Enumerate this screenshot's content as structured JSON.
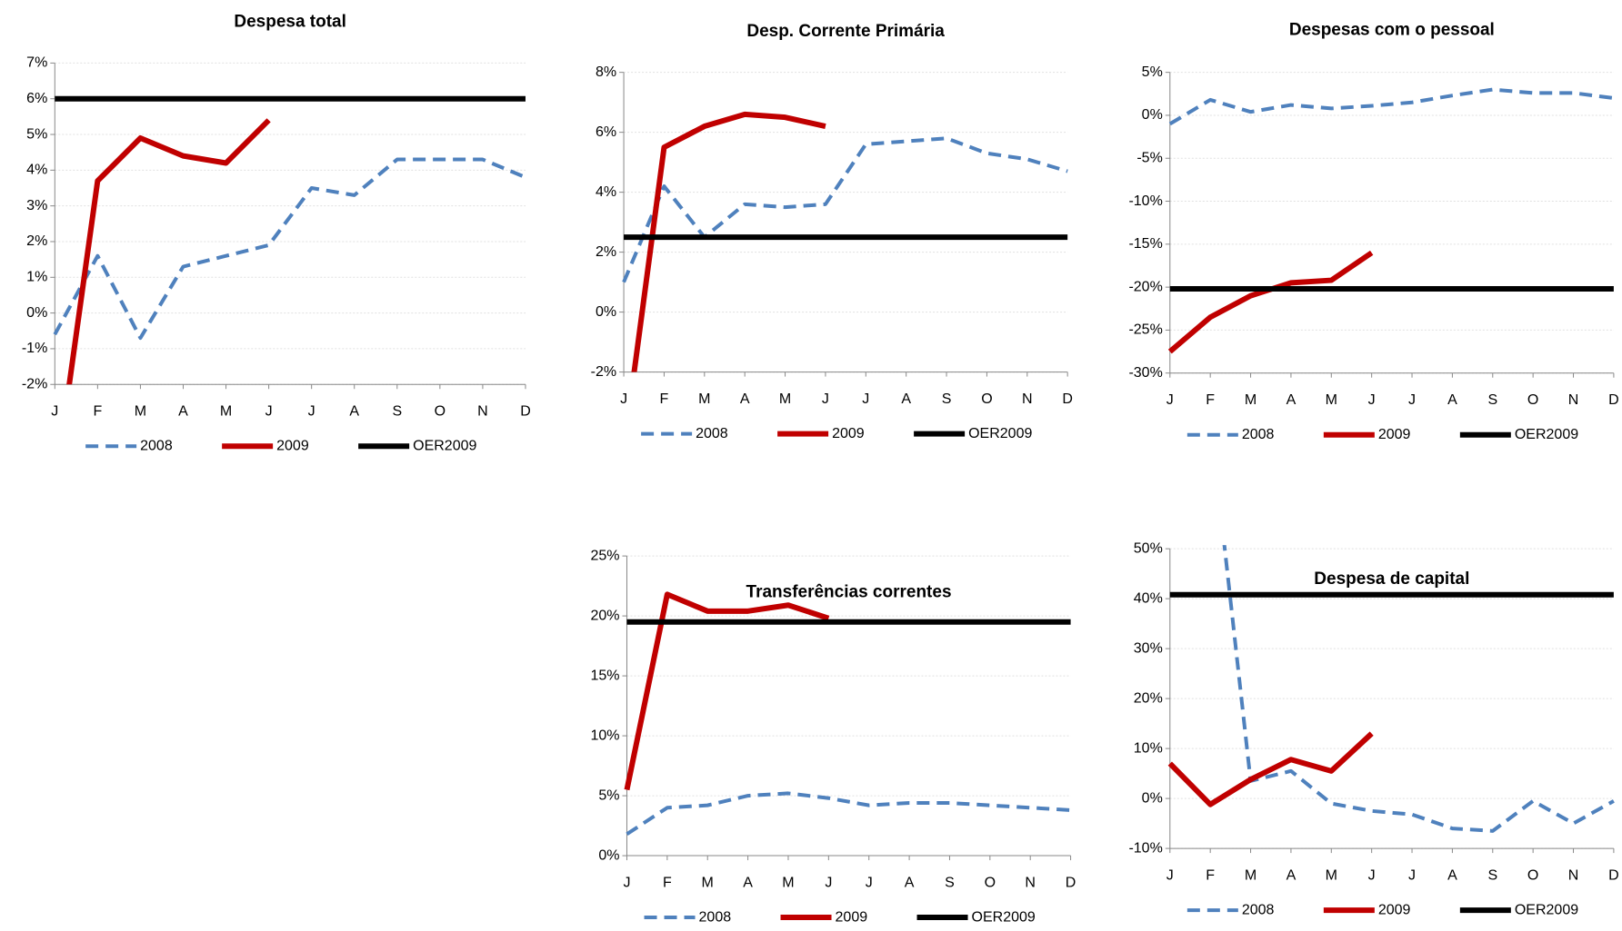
{
  "chart_data": [
    {
      "type": "line",
      "title": "Despesa total",
      "categories": [
        "J",
        "F",
        "M",
        "A",
        "M",
        "J",
        "J",
        "A",
        "S",
        "O",
        "N",
        "D"
      ],
      "ylim": [
        -2,
        7
      ],
      "yticks": [
        {
          "value": -2,
          "label": "-2%"
        },
        {
          "value": -1,
          "label": "-1%"
        },
        {
          "value": 0,
          "label": "0%"
        },
        {
          "value": 1,
          "label": "1%"
        },
        {
          "value": 2,
          "label": "2%"
        },
        {
          "value": 3,
          "label": "3%"
        },
        {
          "value": 4,
          "label": "4%"
        },
        {
          "value": 5,
          "label": "5%"
        },
        {
          "value": 6,
          "label": "6%"
        },
        {
          "value": 7,
          "label": "7%"
        }
      ],
      "grid": true,
      "series": [
        {
          "name": "2008",
          "color": "#4f81bd",
          "style": "dashed",
          "values": [
            -0.6,
            1.6,
            -0.7,
            1.3,
            1.6,
            1.9,
            3.5,
            3.3,
            4.3,
            4.3,
            4.3,
            3.8
          ]
        },
        {
          "name": "2009",
          "color": "#c00000",
          "style": "solid",
          "values": [
            -4.9,
            3.7,
            4.9,
            4.4,
            4.2,
            5.4,
            null,
            null,
            null,
            null,
            null,
            null
          ]
        },
        {
          "name": "OER2009",
          "color": "#000000",
          "style": "solid",
          "values": [
            6,
            6,
            6,
            6,
            6,
            6,
            6,
            6,
            6,
            6,
            6,
            6
          ]
        }
      ]
    },
    {
      "type": "line",
      "title": "Desp. Corrente Primária",
      "categories": [
        "J",
        "F",
        "M",
        "A",
        "M",
        "J",
        "J",
        "A",
        "S",
        "O",
        "N",
        "D"
      ],
      "ylim": [
        -2,
        8
      ],
      "yticks": [
        {
          "value": -2,
          "label": "-2%"
        },
        {
          "value": 0,
          "label": "0%"
        },
        {
          "value": 2,
          "label": "2%"
        },
        {
          "value": 4,
          "label": "4%"
        },
        {
          "value": 6,
          "label": "6%"
        },
        {
          "value": 8,
          "label": "8%"
        }
      ],
      "grid": true,
      "series": [
        {
          "name": "2008",
          "color": "#4f81bd",
          "style": "dashed",
          "values": [
            1.0,
            4.2,
            2.5,
            3.6,
            3.5,
            3.6,
            5.6,
            5.7,
            5.8,
            5.3,
            5.1,
            4.7
          ]
        },
        {
          "name": "2009",
          "color": "#c00000",
          "style": "solid",
          "values": [
            -4.6,
            5.5,
            6.2,
            6.6,
            6.5,
            6.2,
            null,
            null,
            null,
            null,
            null,
            null
          ]
        },
        {
          "name": "OER2009",
          "color": "#000000",
          "style": "solid",
          "values": [
            2.5,
            2.5,
            2.5,
            2.5,
            2.5,
            2.5,
            2.5,
            2.5,
            2.5,
            2.5,
            2.5,
            2.5
          ]
        }
      ]
    },
    {
      "type": "line",
      "title": "Despesas com o pessoal",
      "categories": [
        "J",
        "F",
        "M",
        "A",
        "M",
        "J",
        "J",
        "A",
        "S",
        "O",
        "N",
        "D"
      ],
      "ylim": [
        -30,
        5
      ],
      "yticks": [
        {
          "value": -30,
          "label": "-30%"
        },
        {
          "value": -25,
          "label": "-25%"
        },
        {
          "value": -20,
          "label": "-20%"
        },
        {
          "value": -15,
          "label": "-15%"
        },
        {
          "value": -10,
          "label": "-10%"
        },
        {
          "value": -5,
          "label": "-5%"
        },
        {
          "value": 0,
          "label": "0%"
        },
        {
          "value": 5,
          "label": "5%"
        }
      ],
      "grid": true,
      "series": [
        {
          "name": "2008",
          "color": "#4f81bd",
          "style": "dashed",
          "values": [
            -1,
            1.8,
            0.4,
            1.2,
            0.8,
            1.1,
            1.5,
            2.3,
            3.0,
            2.6,
            2.6,
            2.0
          ]
        },
        {
          "name": "2009",
          "color": "#c00000",
          "style": "solid",
          "values": [
            -27.5,
            -23.5,
            -21,
            -19.5,
            -19.2,
            -16,
            null,
            null,
            null,
            null,
            null,
            null
          ]
        },
        {
          "name": "OER2009",
          "color": "#000000",
          "style": "solid",
          "values": [
            -20.2,
            -20.2,
            -20.2,
            -20.2,
            -20.2,
            -20.2,
            -20.2,
            -20.2,
            -20.2,
            -20.2,
            -20.2,
            -20.2
          ]
        }
      ]
    },
    {
      "type": "line",
      "title": "Transferências correntes",
      "categories": [
        "J",
        "F",
        "M",
        "A",
        "M",
        "J",
        "J",
        "A",
        "S",
        "O",
        "N",
        "D"
      ],
      "ylim": [
        0,
        25
      ],
      "yticks": [
        {
          "value": 0,
          "label": "0%"
        },
        {
          "value": 5,
          "label": "5%"
        },
        {
          "value": 10,
          "label": "10%"
        },
        {
          "value": 15,
          "label": "15%"
        },
        {
          "value": 20,
          "label": "20%"
        },
        {
          "value": 25,
          "label": "25%"
        }
      ],
      "grid": true,
      "series": [
        {
          "name": "2008",
          "color": "#4f81bd",
          "style": "dashed",
          "values": [
            1.8,
            4.0,
            4.2,
            5.0,
            5.2,
            4.8,
            4.2,
            4.4,
            4.4,
            4.2,
            4.0,
            3.8
          ]
        },
        {
          "name": "2009",
          "color": "#c00000",
          "style": "solid",
          "values": [
            5.5,
            21.8,
            20.4,
            20.4,
            20.9,
            19.8,
            null,
            null,
            null,
            null,
            null,
            null
          ]
        },
        {
          "name": "OER2009",
          "color": "#000000",
          "style": "solid",
          "values": [
            19.5,
            19.5,
            19.5,
            19.5,
            19.5,
            19.5,
            19.5,
            19.5,
            19.5,
            19.5,
            19.5,
            19.5
          ]
        }
      ]
    },
    {
      "type": "line",
      "title": "Despesa de capital",
      "categories": [
        "J",
        "F",
        "M",
        "A",
        "M",
        "J",
        "J",
        "A",
        "S",
        "O",
        "N",
        "D"
      ],
      "ylim": [
        -10,
        50
      ],
      "yticks": [
        {
          "value": -10,
          "label": "-10%"
        },
        {
          "value": 0,
          "label": "0%"
        },
        {
          "value": 10,
          "label": "10%"
        },
        {
          "value": 20,
          "label": "20%"
        },
        {
          "value": 30,
          "label": "30%"
        },
        {
          "value": 40,
          "label": "40%"
        },
        {
          "value": 50,
          "label": "50%"
        }
      ],
      "grid": true,
      "series": [
        {
          "name": "2008",
          "color": "#4f81bd",
          "style": "dashed",
          "values": [
            null,
            76,
            3.5,
            5.5,
            -1,
            -2.5,
            -3.2,
            -6,
            -6.5,
            -0.5,
            -5,
            -0.5
          ]
        },
        {
          "name": "2009",
          "color": "#c00000",
          "style": "solid",
          "values": [
            7,
            -1.2,
            3.8,
            7.8,
            5.5,
            13,
            null,
            null,
            null,
            null,
            null,
            null
          ]
        },
        {
          "name": "OER2009",
          "color": "#000000",
          "style": "solid",
          "values": [
            40.8,
            40.8,
            40.8,
            40.8,
            40.8,
            40.8,
            40.8,
            40.8,
            40.8,
            40.8,
            40.8,
            40.8
          ]
        }
      ]
    }
  ]
}
